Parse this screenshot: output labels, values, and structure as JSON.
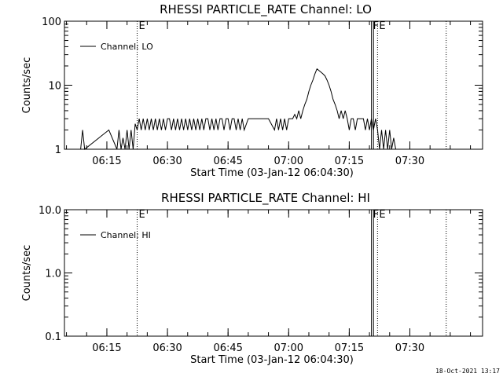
{
  "footer": {
    "timestamp": "18-Oct-2021 13:17"
  },
  "chart_data": [
    {
      "type": "line",
      "title": "RHESSI PARTICLE_RATE Channel: LO",
      "xlabel": "Start Time (03-Jan-12 06:04:30)",
      "ylabel": "Counts/sec",
      "yscale": "log",
      "ylim": [
        1,
        100
      ],
      "xlim": [
        "06:04:30",
        "07:48:00"
      ],
      "x_ticks": [
        "06:15",
        "06:30",
        "06:45",
        "07:00",
        "07:15",
        "07:30"
      ],
      "y_ticks": [
        "1",
        "10",
        "100"
      ],
      "legend": "top-left",
      "markers": [
        {
          "time": "06:22:30",
          "label": "E",
          "style": "dotted"
        },
        {
          "time": "07:20:30",
          "label": "F",
          "style": "solid"
        },
        {
          "time": "07:21:00",
          "label": "",
          "style": "solid"
        },
        {
          "time": "07:22:00",
          "label": "E",
          "style": "dotted"
        },
        {
          "time": "07:39:00",
          "label": "",
          "style": "dotted"
        }
      ],
      "series": [
        {
          "name": "Channel: LO",
          "x": [
            "06:08:30",
            "06:09:00",
            "06:09:30",
            "06:15:30",
            "06:17:30",
            "06:18:00",
            "06:18:30",
            "06:19:00",
            "06:19:30",
            "06:20:00",
            "06:20:30",
            "06:21:00",
            "06:21:30",
            "06:22:00",
            "06:22:30",
            "06:23:00",
            "06:23:30",
            "06:24:00",
            "06:24:30",
            "06:25:00",
            "06:25:30",
            "06:26:00",
            "06:26:30",
            "06:27:00",
            "06:27:30",
            "06:28:00",
            "06:28:30",
            "06:29:00",
            "06:29:30",
            "06:30:00",
            "06:30:30",
            "06:31:00",
            "06:31:30",
            "06:32:00",
            "06:32:30",
            "06:33:00",
            "06:33:30",
            "06:34:00",
            "06:34:30",
            "06:35:00",
            "06:35:30",
            "06:36:00",
            "06:36:30",
            "06:37:00",
            "06:37:30",
            "06:38:00",
            "06:38:30",
            "06:39:00",
            "06:39:30",
            "06:40:00",
            "06:40:30",
            "06:41:00",
            "06:41:30",
            "06:42:00",
            "06:42:30",
            "06:43:00",
            "06:43:30",
            "06:44:00",
            "06:44:30",
            "06:45:00",
            "06:45:30",
            "06:46:00",
            "06:46:30",
            "06:47:00",
            "06:47:30",
            "06:48:00",
            "06:48:30",
            "06:49:00",
            "06:50:00",
            "06:55:00",
            "06:56:30",
            "06:57:00",
            "06:57:30",
            "06:58:00",
            "06:58:30",
            "06:59:00",
            "06:59:30",
            "07:00:00",
            "07:00:30",
            "07:01:00",
            "07:01:30",
            "07:02:00",
            "07:02:30",
            "07:03:00",
            "07:03:30",
            "07:04:00",
            "07:04:30",
            "07:05:00",
            "07:05:30",
            "07:06:00",
            "07:06:30",
            "07:07:00",
            "07:07:30",
            "07:08:00",
            "07:08:30",
            "07:09:00",
            "07:09:30",
            "07:10:00",
            "07:10:30",
            "07:11:00",
            "07:11:30",
            "07:12:00",
            "07:12:30",
            "07:13:00",
            "07:13:30",
            "07:14:00",
            "07:14:30",
            "07:15:00",
            "07:15:30",
            "07:16:00",
            "07:16:30",
            "07:17:00",
            "07:17:30",
            "07:18:00",
            "07:18:30",
            "07:19:00",
            "07:19:30",
            "07:20:00",
            "07:20:30",
            "07:21:00",
            "07:21:30",
            "07:22:00",
            "07:22:30",
            "07:23:00",
            "07:23:30",
            "07:24:00",
            "07:24:30",
            "07:25:00",
            "07:25:30",
            "07:26:00",
            "07:26:30",
            "07:27:00"
          ],
          "y": [
            1,
            2,
            1,
            2,
            1,
            2,
            1,
            1.5,
            1,
            2,
            1,
            2,
            1,
            2.5,
            2,
            3,
            2,
            3,
            2,
            3,
            2,
            3,
            2,
            3,
            2,
            3,
            2,
            3,
            2,
            3,
            3,
            2,
            3,
            2,
            3,
            2,
            3,
            2,
            3,
            2,
            3,
            2,
            3,
            2,
            3,
            2,
            3,
            2,
            3,
            3,
            2,
            3,
            2,
            3,
            2,
            3,
            3,
            2,
            3,
            3,
            2,
            3,
            3,
            2,
            3,
            2,
            3,
            2,
            3,
            3,
            2,
            3,
            2,
            3,
            2,
            3,
            2,
            3,
            3,
            3,
            3.5,
            3,
            4,
            3,
            4,
            5,
            6,
            8,
            10,
            12,
            15,
            18,
            17,
            16,
            15,
            14,
            12,
            10,
            8,
            6,
            5,
            4,
            3,
            4,
            3,
            4,
            3,
            2,
            3,
            3,
            2,
            3,
            3,
            3,
            3,
            2,
            3,
            2,
            3,
            2,
            3,
            2,
            1,
            2,
            1,
            2,
            1,
            2,
            1,
            1.5,
            1,
            1
          ]
        }
      ]
    },
    {
      "type": "line",
      "title": "RHESSI PARTICLE_RATE Channel: HI",
      "xlabel": "Start Time (03-Jan-12 06:04:30)",
      "ylabel": "Counts/sec",
      "yscale": "log",
      "ylim": [
        0.1,
        10
      ],
      "xlim": [
        "06:04:30",
        "07:48:00"
      ],
      "x_ticks": [
        "06:15",
        "06:30",
        "06:45",
        "07:00",
        "07:15",
        "07:30"
      ],
      "y_ticks": [
        "0.1",
        "1.0",
        "10.0"
      ],
      "legend": "top-left",
      "markers": [
        {
          "time": "06:22:30",
          "label": "E",
          "style": "dotted"
        },
        {
          "time": "07:20:30",
          "label": "F",
          "style": "solid"
        },
        {
          "time": "07:21:00",
          "label": "",
          "style": "solid"
        },
        {
          "time": "07:22:00",
          "label": "E",
          "style": "dotted"
        },
        {
          "time": "07:39:00",
          "label": "",
          "style": "dotted"
        }
      ],
      "series": [
        {
          "name": "Channel: HI",
          "x": [],
          "y": []
        }
      ]
    }
  ]
}
